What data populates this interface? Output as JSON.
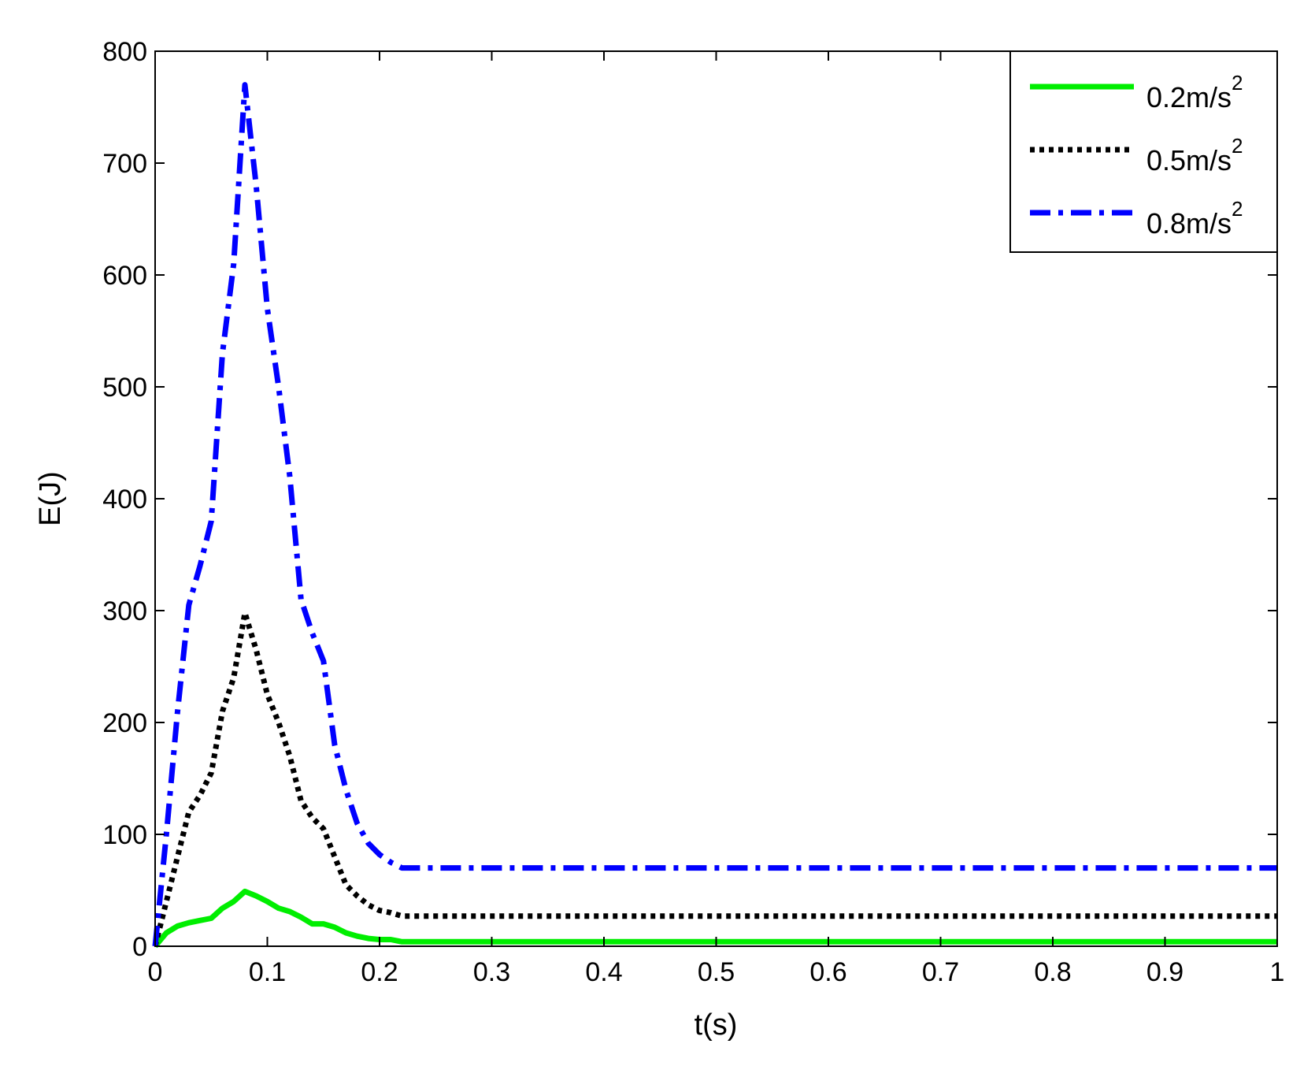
{
  "chart_data": {
    "type": "line",
    "title": "",
    "xlabel": "t(s)",
    "ylabel": "E(J)",
    "xlim": [
      0,
      1
    ],
    "ylim": [
      0,
      800
    ],
    "xticks": [
      0,
      0.1,
      0.2,
      0.3,
      0.4,
      0.5,
      0.6,
      0.7,
      0.8,
      0.9,
      1
    ],
    "xtick_labels": [
      "0",
      "0.1",
      "0.2",
      "0.3",
      "0.4",
      "0.5",
      "0.6",
      "0.7",
      "0.8",
      "0.9",
      "1"
    ],
    "yticks": [
      0,
      100,
      200,
      300,
      400,
      500,
      600,
      700,
      800
    ],
    "ytick_labels": [
      "0",
      "100",
      "200",
      "300",
      "400",
      "500",
      "600",
      "700",
      "800"
    ],
    "grid": false,
    "legend_position": "top-right",
    "series": [
      {
        "name": "0.2m/s",
        "name_sup": "2",
        "color": "#00ee00",
        "style": "solid",
        "x": [
          0,
          0.01,
          0.02,
          0.03,
          0.04,
          0.05,
          0.06,
          0.07,
          0.08,
          0.09,
          0.1,
          0.11,
          0.12,
          0.13,
          0.14,
          0.15,
          0.16,
          0.17,
          0.18,
          0.19,
          0.2,
          0.21,
          0.22,
          0.23,
          0.3,
          0.5,
          0.7,
          0.9,
          1.0
        ],
        "y": [
          0,
          12,
          18,
          21,
          23,
          25,
          34,
          40,
          49,
          45,
          40,
          34,
          31,
          26,
          20,
          20,
          17,
          12,
          9,
          7,
          6,
          6,
          4,
          4,
          4,
          4,
          4,
          4,
          4
        ]
      },
      {
        "name": "0.5m/s",
        "name_sup": "2",
        "color": "#000000",
        "style": "dotted",
        "x": [
          0,
          0.01,
          0.02,
          0.03,
          0.04,
          0.05,
          0.06,
          0.07,
          0.08,
          0.09,
          0.1,
          0.11,
          0.12,
          0.13,
          0.14,
          0.15,
          0.16,
          0.17,
          0.18,
          0.19,
          0.2,
          0.21,
          0.22,
          0.23,
          0.3,
          0.5,
          0.7,
          0.9,
          1.0
        ],
        "y": [
          0,
          40,
          80,
          120,
          135,
          155,
          210,
          240,
          298,
          265,
          225,
          200,
          170,
          130,
          115,
          105,
          80,
          55,
          45,
          37,
          32,
          30,
          27,
          27,
          27,
          27,
          27,
          27,
          27
        ]
      },
      {
        "name": "0.8m/s",
        "name_sup": "2",
        "color": "#0000ff",
        "style": "dashdot",
        "x": [
          0,
          0.01,
          0.02,
          0.03,
          0.04,
          0.05,
          0.06,
          0.07,
          0.08,
          0.09,
          0.1,
          0.11,
          0.12,
          0.13,
          0.14,
          0.15,
          0.16,
          0.17,
          0.18,
          0.19,
          0.2,
          0.21,
          0.22,
          0.23,
          0.3,
          0.5,
          0.7,
          0.9,
          1.0
        ],
        "y": [
          0,
          100,
          210,
          305,
          340,
          380,
          530,
          610,
          770,
          680,
          570,
          500,
          420,
          310,
          280,
          255,
          180,
          140,
          110,
          92,
          82,
          75,
          70,
          70,
          70,
          70,
          70,
          70,
          70
        ]
      }
    ]
  }
}
